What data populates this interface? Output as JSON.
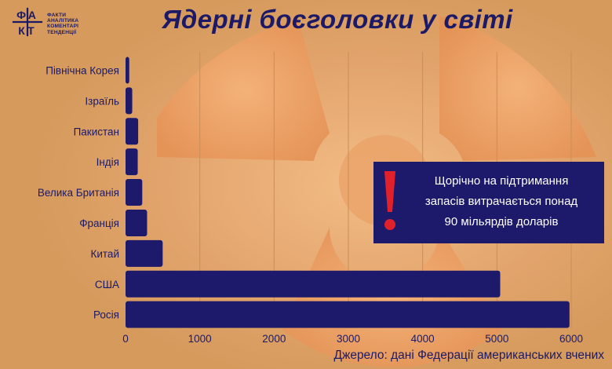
{
  "logo": {
    "mark_lines": [
      "ФА",
      "КТ"
    ],
    "lines": [
      "ФАКТИ",
      "АНАЛІТИКА",
      "КОМЕНТАРІ",
      "ТЕНДЕНЦІЇ"
    ]
  },
  "callout": {
    "lines": [
      "Щорічно на підтримання",
      "запасів витрачається понад",
      "90 мільярдів доларів"
    ],
    "icon": "exclamation-icon",
    "accent_color": "#e0202a"
  },
  "source": "Джерело: дані Федерації американських вчених",
  "colors": {
    "bar": "#1d1a6b",
    "text": "#1c1a66",
    "background": "#d59a5c"
  },
  "chart_data": {
    "type": "bar",
    "orientation": "horizontal",
    "title": "Ядерні боєголовки у світі",
    "categories": [
      "Північна Корея",
      "Ізраїль",
      "Пакистан",
      "Індія",
      "Велика Британія",
      "Франція",
      "Китай",
      "США",
      "Росія"
    ],
    "values": [
      50,
      90,
      170,
      164,
      225,
      290,
      500,
      5044,
      5977
    ],
    "xlim": [
      0,
      6000
    ],
    "xticks": [
      0,
      1000,
      2000,
      3000,
      4000,
      5000,
      6000
    ],
    "grid": "vertical",
    "legend": "none"
  }
}
